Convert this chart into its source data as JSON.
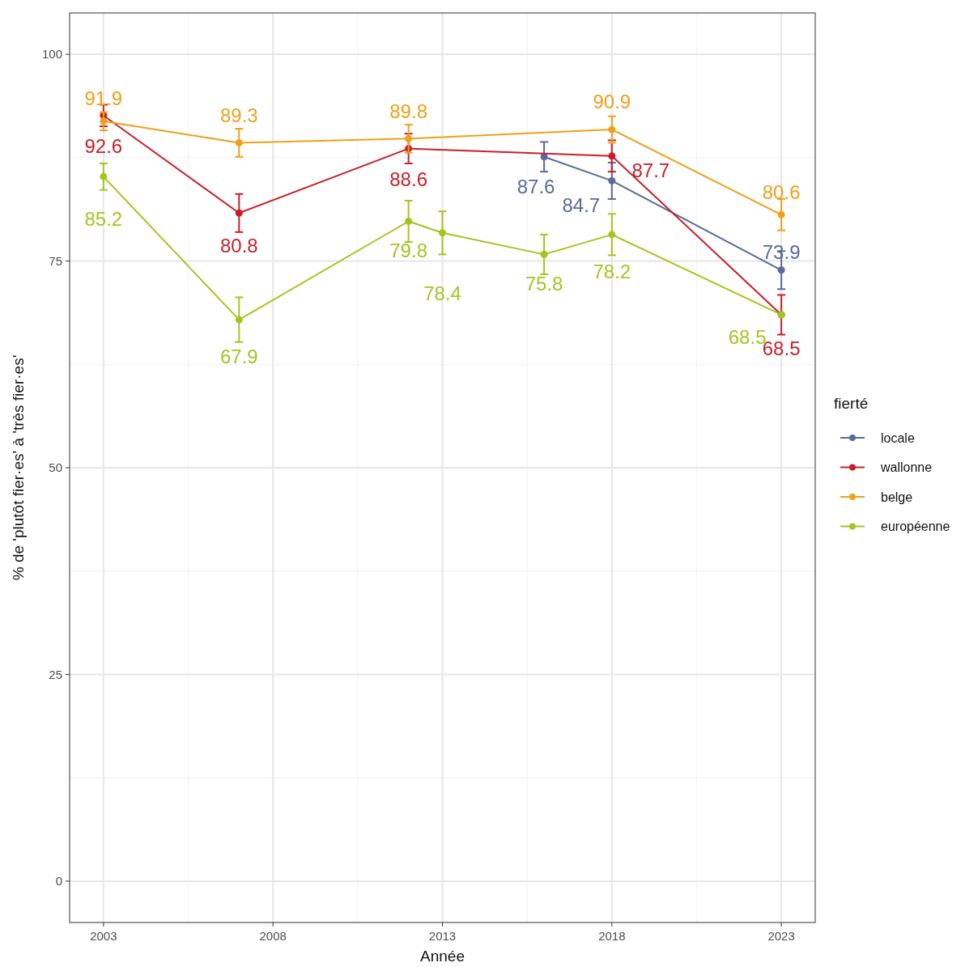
{
  "chart_data": {
    "type": "line",
    "xlabel": "Année",
    "ylabel": "% de 'plutôt fier·es' à 'très fier·es'",
    "legend_title": "fierté",
    "legend": "right",
    "grid": true,
    "marker": "circle",
    "data_labels": true,
    "xlim": [
      2002,
      2024
    ],
    "xticks": [
      2003,
      2008,
      2013,
      2018,
      2023
    ],
    "ylim": [
      -5,
      105
    ],
    "yticks": [
      0,
      25,
      50,
      75,
      100
    ],
    "series": [
      {
        "name": "locale",
        "color": "#5a6a9a",
        "x": [
          2016,
          2018,
          2023
        ],
        "values": [
          87.6,
          84.7,
          73.9
        ],
        "errors": [
          1.8,
          2.2,
          2.3
        ]
      },
      {
        "name": "wallonne",
        "color": "#c8202a",
        "x": [
          2003,
          2007,
          2012,
          2018,
          2023
        ],
        "values": [
          92.6,
          80.8,
          88.6,
          87.7,
          68.5
        ],
        "errors": [
          1.3,
          2.3,
          1.8,
          1.9,
          2.4
        ]
      },
      {
        "name": "belge",
        "color": "#f0a01a",
        "x": [
          2003,
          2007,
          2012,
          2018,
          2023
        ],
        "values": [
          91.9,
          89.3,
          89.8,
          90.9,
          80.6
        ],
        "errors": [
          1.1,
          1.7,
          1.7,
          1.6,
          1.9
        ]
      },
      {
        "name": "européenne",
        "color": "#a4c520",
        "x": [
          2003,
          2007,
          2012,
          2013,
          2016,
          2018,
          2023
        ],
        "values": [
          85.2,
          67.9,
          79.8,
          78.4,
          75.8,
          78.2,
          68.5
        ],
        "errors": [
          1.6,
          2.7,
          2.5,
          2.6,
          2.4,
          2.5,
          null
        ]
      }
    ]
  }
}
